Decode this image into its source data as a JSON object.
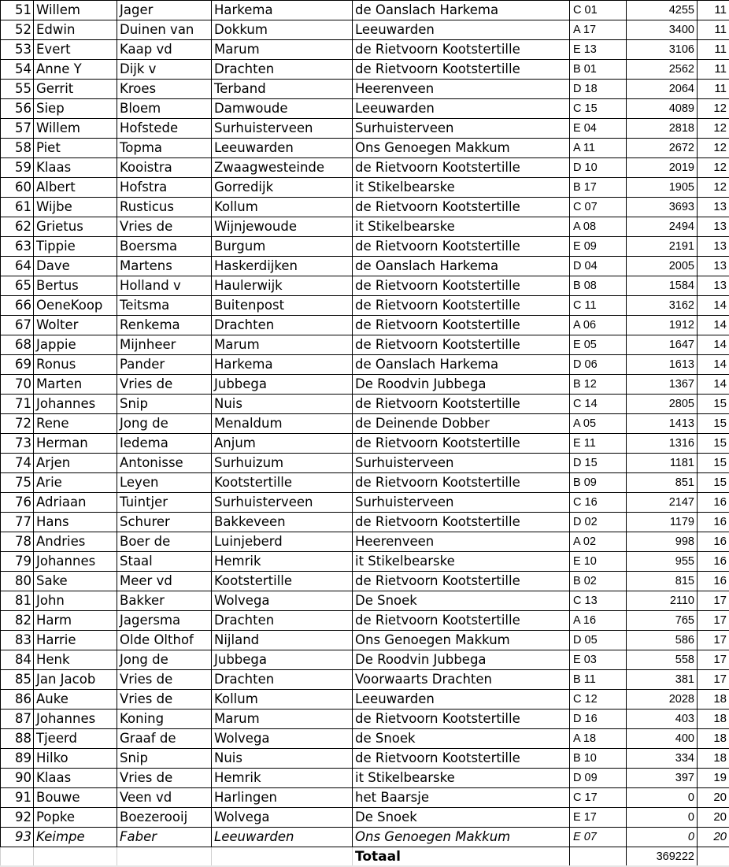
{
  "rows": [
    [
      "51",
      "Willem",
      "Jager",
      "Harkema",
      "de Oanslach Harkema",
      "C 01",
      "4255",
      "11"
    ],
    [
      "52",
      "Edwin",
      "Duinen van",
      "Dokkum",
      "Leeuwarden",
      "A 17",
      "3400",
      "11"
    ],
    [
      "53",
      "Evert",
      "Kaap vd",
      "Marum",
      "de Rietvoorn Kootstertille",
      "E 13",
      "3106",
      "11"
    ],
    [
      "54",
      "Anne Y",
      "Dijk v",
      "Drachten",
      "de Rietvoorn Kootstertille",
      "B 01",
      "2562",
      "11"
    ],
    [
      "55",
      "Gerrit",
      "Kroes",
      "Terband",
      "Heerenveen",
      "D 18",
      "2064",
      "11"
    ],
    [
      "56",
      "Siep",
      "Bloem",
      "Damwoude",
      "Leeuwarden",
      "C 15",
      "4089",
      "12"
    ],
    [
      "57",
      "Willem",
      "Hofstede",
      "Surhuisterveen",
      "Surhuisterveen",
      "E 04",
      "2818",
      "12"
    ],
    [
      "58",
      "Piet",
      "Topma",
      "Leeuwarden",
      "Ons Genoegen Makkum",
      "A 11",
      "2672",
      "12"
    ],
    [
      "59",
      "Klaas",
      "Kooistra",
      "Zwaagwesteinde",
      "de Rietvoorn Kootstertille",
      "D 10",
      "2019",
      "12"
    ],
    [
      "60",
      "Albert",
      "Hofstra",
      "Gorredijk",
      "it Stikelbearske",
      "B 17",
      "1905",
      "12"
    ],
    [
      "61",
      "Wijbe",
      "Rusticus",
      "Kollum",
      "de Rietvoorn Kootstertille",
      "C 07",
      "3693",
      "13"
    ],
    [
      "62",
      "Grietus",
      "Vries de",
      "Wijnjewoude",
      "it Stikelbearske",
      "A 08",
      "2494",
      "13"
    ],
    [
      "63",
      "Tippie",
      "Boersma",
      "Burgum",
      "de Rietvoorn Kootstertille",
      "E 09",
      "2191",
      "13"
    ],
    [
      "64",
      "Dave",
      "Martens",
      "Haskerdijken",
      "de Oanslach Harkema",
      "D 04",
      "2005",
      "13"
    ],
    [
      "65",
      "Bertus",
      "Holland v",
      "Haulerwijk",
      "de Rietvoorn Kootstertille",
      "B 08",
      "1584",
      "13"
    ],
    [
      "66",
      "OeneKoop",
      "Teitsma",
      "Buitenpost",
      "de Rietvoorn Kootstertille",
      "C 11",
      "3162",
      "14"
    ],
    [
      "67",
      "Wolter",
      "Renkema",
      "Drachten",
      "de Rietvoorn Kootstertille",
      "A 06",
      "1912",
      "14"
    ],
    [
      "68",
      "Jappie",
      "Mijnheer",
      "Marum",
      "de Rietvoorn Kootstertille",
      "E 05",
      "1647",
      "14"
    ],
    [
      "69",
      "Ronus",
      "Pander",
      "Harkema",
      "de Oanslach Harkema",
      "D 06",
      "1613",
      "14"
    ],
    [
      "70",
      "Marten",
      "Vries de",
      "Jubbega",
      "De Roodvin Jubbega",
      "B 12",
      "1367",
      "14"
    ],
    [
      "71",
      "Johannes",
      "Snip",
      "Nuis",
      "de Rietvoorn Kootstertille",
      "C 14",
      "2805",
      "15"
    ],
    [
      "72",
      "Rene",
      "Jong de",
      "Menaldum",
      "de Deinende Dobber",
      "A 05",
      "1413",
      "15"
    ],
    [
      "73",
      "Herman",
      "Iedema",
      "Anjum",
      "de Rietvoorn Kootstertille",
      "E 11",
      "1316",
      "15"
    ],
    [
      "74",
      "Arjen",
      "Antonisse",
      "Surhuizum",
      "Surhuisterveen",
      "D 15",
      "1181",
      "15"
    ],
    [
      "75",
      "Arie",
      "Leyen",
      "Kootstertille",
      "de Rietvoorn Kootstertille",
      "B 09",
      "851",
      "15"
    ],
    [
      "76",
      "Adriaan",
      "Tuintjer",
      "Surhuisterveen",
      "Surhuisterveen",
      "C 16",
      "2147",
      "16"
    ],
    [
      "77",
      "Hans",
      "Schurer",
      "Bakkeveen",
      "de Rietvoorn Kootstertille",
      "D 02",
      "1179",
      "16"
    ],
    [
      "78",
      "Andries",
      "Boer de",
      "Luinjeberd",
      "Heerenveen",
      "A 02",
      "998",
      "16"
    ],
    [
      "79",
      "Johannes",
      "Staal",
      "Hemrik",
      "it Stikelbearske",
      "E 10",
      "955",
      "16"
    ],
    [
      "80",
      "Sake",
      "Meer vd",
      "Kootstertille",
      "de Rietvoorn Kootstertille",
      "B 02",
      "815",
      "16"
    ],
    [
      "81",
      "John",
      "Bakker",
      "Wolvega",
      "De Snoek",
      "C 13",
      "2110",
      "17"
    ],
    [
      "82",
      "Harm",
      "Jagersma",
      "Drachten",
      "de Rietvoorn Kootstertille",
      "A 16",
      "765",
      "17"
    ],
    [
      "83",
      "Harrie",
      "Olde Olthof",
      "Nijland",
      "Ons Genoegen Makkum",
      "D 05",
      "586",
      "17"
    ],
    [
      "84",
      "Henk",
      "Jong de",
      "Jubbega",
      "De Roodvin Jubbega",
      "E 03",
      "558",
      "17"
    ],
    [
      "85",
      "Jan Jacob",
      "Vries de",
      "Drachten",
      "Voorwaarts Drachten",
      "B 11",
      "381",
      "17"
    ],
    [
      "86",
      "Auke",
      "Vries de",
      "Kollum",
      "Leeuwarden",
      "C 12",
      "2028",
      "18"
    ],
    [
      "87",
      "Johannes",
      "Koning",
      "Marum",
      "de Rietvoorn Kootstertille",
      "D 16",
      "403",
      "18"
    ],
    [
      "88",
      "Tjeerd",
      "Graaf de",
      "Wolvega",
      "de Snoek",
      "A 18",
      "400",
      "18"
    ],
    [
      "89",
      "Hilko",
      "Snip",
      "Nuis",
      "de Rietvoorn Kootstertille",
      "B 10",
      "334",
      "18"
    ],
    [
      "90",
      "Klaas",
      "Vries de",
      "Hemrik",
      "it Stikelbearske",
      "D 09",
      "397",
      "19"
    ],
    [
      "91",
      "Bouwe",
      "Veen vd",
      "Harlingen",
      "het Baarsje",
      "C 17",
      "0",
      "20"
    ],
    [
      "92",
      "Popke",
      "Boezerooij",
      "Wolvega",
      "De Snoek",
      "E 17",
      "0",
      "20"
    ],
    [
      "93",
      "Keimpe",
      "Faber",
      "Leeuwarden",
      "Ons Genoegen Makkum",
      "E 07",
      "0",
      "20"
    ]
  ],
  "italic_rows": [
    "93"
  ],
  "total": {
    "label": "Totaal",
    "value": "369222"
  }
}
